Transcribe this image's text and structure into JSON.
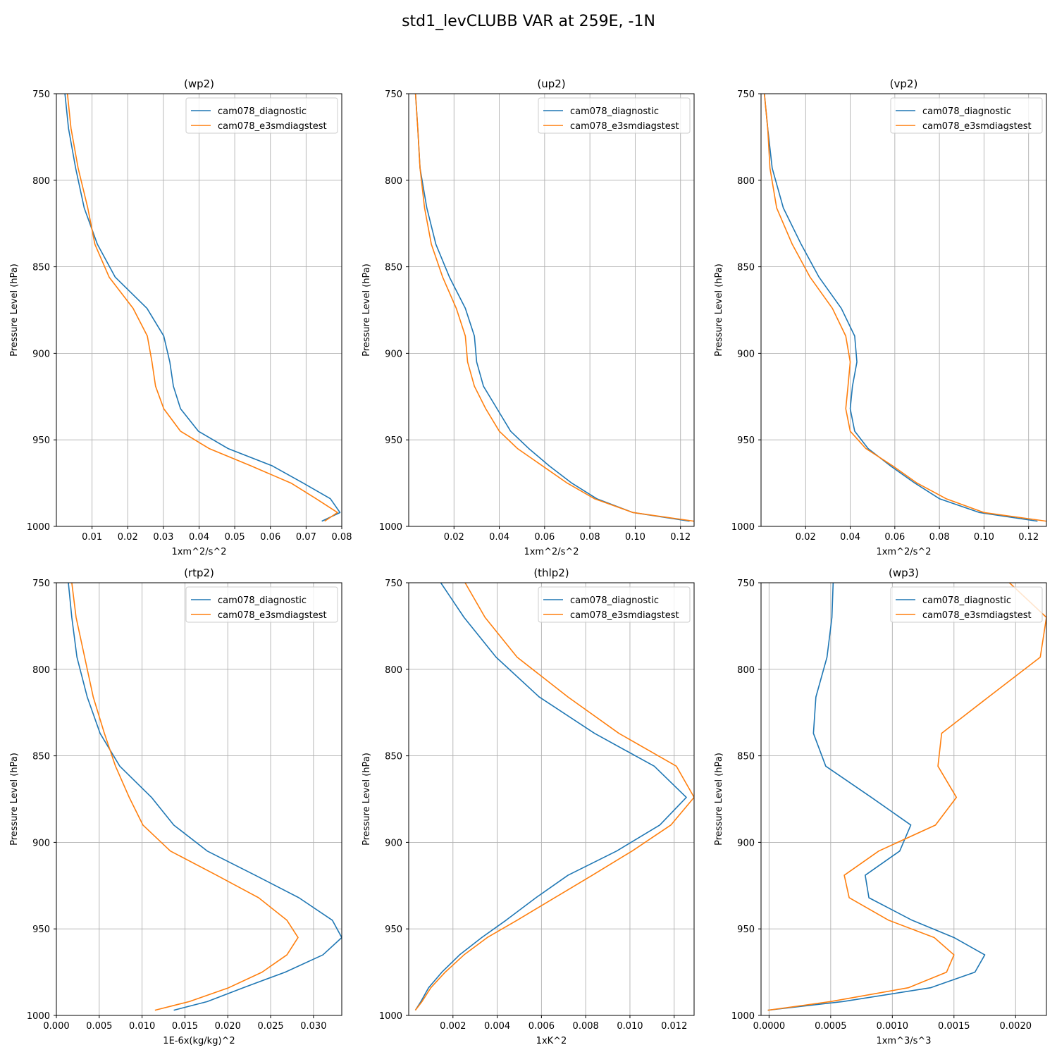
{
  "figure": {
    "title": "std1_levCLUBB VAR at 259E, -1N"
  },
  "colors": {
    "cam078_diagnostic": "#1f77b4",
    "cam078_e3smdiagstest": "#ff7f0e",
    "grid": "#b0b0b0"
  },
  "chart_data": [
    {
      "type": "line",
      "title": "(wp2)",
      "xlabel": "1xm^2/s^2",
      "ylabel": "Pressure Level (hPa)",
      "xlim": [
        0.0,
        0.08
      ],
      "ylim": [
        1000,
        750
      ],
      "xticks": [
        0.01,
        0.02,
        0.03,
        0.04,
        0.05,
        0.06,
        0.07,
        0.08
      ],
      "xticklabels": [
        "0.01",
        "0.02",
        "0.03",
        "0.04",
        "0.05",
        "0.06",
        "0.07",
        "0.08"
      ],
      "yticks": [
        750,
        800,
        850,
        900,
        950,
        1000
      ],
      "grid": true,
      "legend_position": "upper right",
      "legend": [
        "cam078_diagnostic",
        "cam078_e3smdiagstest"
      ],
      "series": [
        {
          "name": "cam078_diagnostic",
          "x": [
            0.0024,
            0.0034,
            0.0054,
            0.0078,
            0.0115,
            0.0165,
            0.0254,
            0.0301,
            0.0318,
            0.0328,
            0.0348,
            0.0398,
            0.0481,
            0.0605,
            0.0692,
            0.0768,
            0.0795,
            0.0744
          ],
          "y": [
            750,
            770,
            793,
            816,
            837,
            856,
            874,
            890,
            905,
            919,
            932,
            945,
            955,
            965,
            975,
            984,
            992,
            997
          ]
        },
        {
          "name": "cam078_e3smdiagstest",
          "x": [
            0.0031,
            0.0041,
            0.0061,
            0.0088,
            0.0108,
            0.0148,
            0.0215,
            0.0255,
            0.0268,
            0.0278,
            0.0301,
            0.0348,
            0.0428,
            0.0545,
            0.0658,
            0.0728,
            0.0788,
            0.0752
          ],
          "y": [
            750,
            770,
            793,
            816,
            837,
            856,
            874,
            890,
            905,
            919,
            932,
            945,
            955,
            965,
            975,
            984,
            992,
            997
          ]
        }
      ]
    },
    {
      "type": "line",
      "title": "(up2)",
      "xlabel": "1xm^2/s^2",
      "ylabel": "Pressure Level (hPa)",
      "xlim": [
        0.0,
        0.126
      ],
      "ylim": [
        1000,
        750
      ],
      "xticks": [
        0.02,
        0.04,
        0.06,
        0.08,
        0.1,
        0.12
      ],
      "xticklabels": [
        "0.02",
        "0.04",
        "0.06",
        "0.08",
        "0.10",
        "0.12"
      ],
      "yticks": [
        750,
        800,
        850,
        900,
        950,
        1000
      ],
      "grid": true,
      "legend_position": "upper right",
      "legend": [
        "cam078_diagnostic",
        "cam078_e3smdiagstest"
      ],
      "series": [
        {
          "name": "cam078_diagnostic",
          "x": [
            0.003,
            0.004,
            0.005,
            0.008,
            0.012,
            0.018,
            0.025,
            0.029,
            0.03,
            0.033,
            0.039,
            0.045,
            0.053,
            0.062,
            0.072,
            0.083,
            0.099,
            0.124
          ],
          "y": [
            750,
            770,
            793,
            816,
            837,
            856,
            874,
            890,
            905,
            919,
            932,
            945,
            955,
            965,
            975,
            984,
            992,
            997
          ]
        },
        {
          "name": "cam078_e3smdiagstest",
          "x": [
            0.003,
            0.004,
            0.005,
            0.007,
            0.01,
            0.015,
            0.021,
            0.025,
            0.026,
            0.029,
            0.034,
            0.04,
            0.048,
            0.059,
            0.07,
            0.082,
            0.099,
            0.126
          ],
          "y": [
            750,
            770,
            793,
            816,
            837,
            856,
            874,
            890,
            905,
            919,
            932,
            945,
            955,
            965,
            975,
            984,
            992,
            997
          ]
        }
      ]
    },
    {
      "type": "line",
      "title": "(vp2)",
      "xlabel": "1xm^2/s^2",
      "ylabel": "Pressure Level (hPa)",
      "xlim": [
        0.0,
        0.128
      ],
      "ylim": [
        1000,
        750
      ],
      "xticks": [
        0.02,
        0.04,
        0.06,
        0.08,
        0.1,
        0.12
      ],
      "xticklabels": [
        "0.02",
        "0.04",
        "0.06",
        "0.08",
        "0.10",
        "0.12"
      ],
      "yticks": [
        750,
        800,
        850,
        900,
        950,
        1000
      ],
      "grid": true,
      "legend_position": "upper right",
      "legend": [
        "cam078_diagnostic",
        "cam078_e3smdiagstest"
      ],
      "series": [
        {
          "name": "cam078_diagnostic",
          "x": [
            0.0015,
            0.003,
            0.005,
            0.01,
            0.018,
            0.026,
            0.036,
            0.042,
            0.043,
            0.041,
            0.04,
            0.042,
            0.048,
            0.058,
            0.069,
            0.08,
            0.098,
            0.124
          ],
          "y": [
            750,
            770,
            793,
            816,
            837,
            856,
            874,
            890,
            905,
            919,
            932,
            945,
            955,
            965,
            975,
            984,
            992,
            997
          ]
        },
        {
          "name": "cam078_e3smdiagstest",
          "x": [
            0.0015,
            0.003,
            0.004,
            0.007,
            0.014,
            0.022,
            0.032,
            0.038,
            0.04,
            0.039,
            0.038,
            0.04,
            0.047,
            0.059,
            0.07,
            0.083,
            0.1,
            0.128
          ],
          "y": [
            750,
            770,
            793,
            816,
            837,
            856,
            874,
            890,
            905,
            919,
            932,
            945,
            955,
            965,
            975,
            984,
            992,
            997
          ]
        }
      ]
    },
    {
      "type": "line",
      "title": "(rtp2)",
      "xlabel": "1E-6x(kg/kg)^2",
      "ylabel": "Pressure Level (hPa)",
      "xlim": [
        0.0,
        0.0333
      ],
      "ylim": [
        1000,
        750
      ],
      "xticks": [
        0.0,
        0.005,
        0.01,
        0.015,
        0.02,
        0.025,
        0.03
      ],
      "xticklabels": [
        "0.000",
        "0.005",
        "0.010",
        "0.015",
        "0.020",
        "0.025",
        "0.030"
      ],
      "yticks": [
        750,
        800,
        850,
        900,
        950,
        1000
      ],
      "grid": true,
      "legend_position": "upper right",
      "legend": [
        "cam078_diagnostic",
        "cam078_e3smdiagstest"
      ],
      "series": [
        {
          "name": "cam078_diagnostic",
          "x": [
            0.0014,
            0.0018,
            0.0024,
            0.0036,
            0.0051,
            0.0074,
            0.0111,
            0.0137,
            0.0176,
            0.0232,
            0.0283,
            0.0322,
            0.0333,
            0.0311,
            0.0267,
            0.0218,
            0.0176,
            0.0137
          ],
          "y": [
            750,
            770,
            793,
            816,
            837,
            856,
            874,
            890,
            905,
            919,
            932,
            945,
            955,
            965,
            975,
            984,
            992,
            997
          ]
        },
        {
          "name": "cam078_e3smdiagstest",
          "x": [
            0.0018,
            0.0023,
            0.0033,
            0.0043,
            0.0056,
            0.0069,
            0.0085,
            0.0101,
            0.0133,
            0.0187,
            0.0236,
            0.0269,
            0.0282,
            0.0269,
            0.024,
            0.0201,
            0.0155,
            0.0115
          ],
          "y": [
            750,
            770,
            793,
            816,
            837,
            856,
            874,
            890,
            905,
            919,
            932,
            945,
            955,
            965,
            975,
            984,
            992,
            997
          ]
        }
      ]
    },
    {
      "type": "line",
      "title": "(thlp2)",
      "xlabel": "1xK^2",
      "ylabel": "Pressure Level (hPa)",
      "xlim": [
        0.0,
        0.0129
      ],
      "ylim": [
        1000,
        750
      ],
      "xticks": [
        0.002,
        0.004,
        0.006,
        0.008,
        0.01,
        0.012
      ],
      "xticklabels": [
        "0.002",
        "0.004",
        "0.006",
        "0.008",
        "0.010",
        "0.012"
      ],
      "yticks": [
        750,
        800,
        850,
        900,
        950,
        1000
      ],
      "grid": true,
      "legend_position": "upper right",
      "legend": [
        "cam078_diagnostic",
        "cam078_e3smdiagstest"
      ],
      "series": [
        {
          "name": "cam078_diagnostic",
          "x": [
            0.00145,
            0.0025,
            0.00395,
            0.0059,
            0.0084,
            0.0111,
            0.01255,
            0.01135,
            0.0094,
            0.0072,
            0.00575,
            0.0044,
            0.0033,
            0.0023,
            0.0015,
            0.0009,
            0.00055,
            0.0003
          ],
          "y": [
            750,
            770,
            793,
            816,
            837,
            856,
            874,
            890,
            905,
            919,
            932,
            945,
            955,
            965,
            975,
            984,
            992,
            997
          ]
        },
        {
          "name": "cam078_e3smdiagstest",
          "x": [
            0.00255,
            0.00345,
            0.0049,
            0.0072,
            0.0095,
            0.0121,
            0.0129,
            0.01185,
            0.0101,
            0.0083,
            0.0066,
            0.0049,
            0.00355,
            0.0025,
            0.00165,
            0.001,
            0.0006,
            0.0003
          ],
          "y": [
            750,
            770,
            793,
            816,
            837,
            856,
            874,
            890,
            905,
            919,
            932,
            945,
            955,
            965,
            975,
            984,
            992,
            997
          ]
        }
      ]
    },
    {
      "type": "line",
      "title": "(wp3)",
      "xlabel": "1xm^3/s^3",
      "ylabel": "Pressure Level (hPa)",
      "xlim": [
        -6.5e-05,
        0.00225
      ],
      "ylim": [
        1000,
        750
      ],
      "xticks": [
        0.0,
        0.0005,
        0.001,
        0.0015,
        0.002
      ],
      "xticklabels": [
        "0.0000",
        "0.0005",
        "0.0010",
        "0.0015",
        "0.0020"
      ],
      "yticks": [
        750,
        800,
        850,
        900,
        950,
        1000
      ],
      "grid": true,
      "legend_position": "upper right",
      "legend": [
        "cam078_diagnostic",
        "cam078_e3smdiagstest"
      ],
      "series": [
        {
          "name": "cam078_diagnostic",
          "x": [
            0.00052,
            0.00051,
            0.00047,
            0.00038,
            0.00036,
            0.00046,
            0.00083,
            0.00115,
            0.00106,
            0.00078,
            0.00081,
            0.00116,
            0.0015,
            0.00175,
            0.00167,
            0.00131,
            0.0006,
            -1e-05
          ],
          "y": [
            750,
            770,
            793,
            816,
            837,
            856,
            874,
            890,
            905,
            919,
            932,
            945,
            955,
            965,
            975,
            984,
            992,
            997
          ]
        },
        {
          "name": "cam078_e3smdiagstest",
          "x": [
            0.00195,
            0.00225,
            0.0022,
            0.00178,
            0.0014,
            0.00137,
            0.00152,
            0.00135,
            0.00089,
            0.00061,
            0.00065,
            0.00097,
            0.00134,
            0.0015,
            0.00144,
            0.00113,
            0.0005,
            -1e-05
          ],
          "y": [
            750,
            770,
            793,
            816,
            837,
            856,
            874,
            890,
            905,
            919,
            932,
            945,
            955,
            965,
            975,
            984,
            992,
            997
          ]
        }
      ]
    }
  ]
}
